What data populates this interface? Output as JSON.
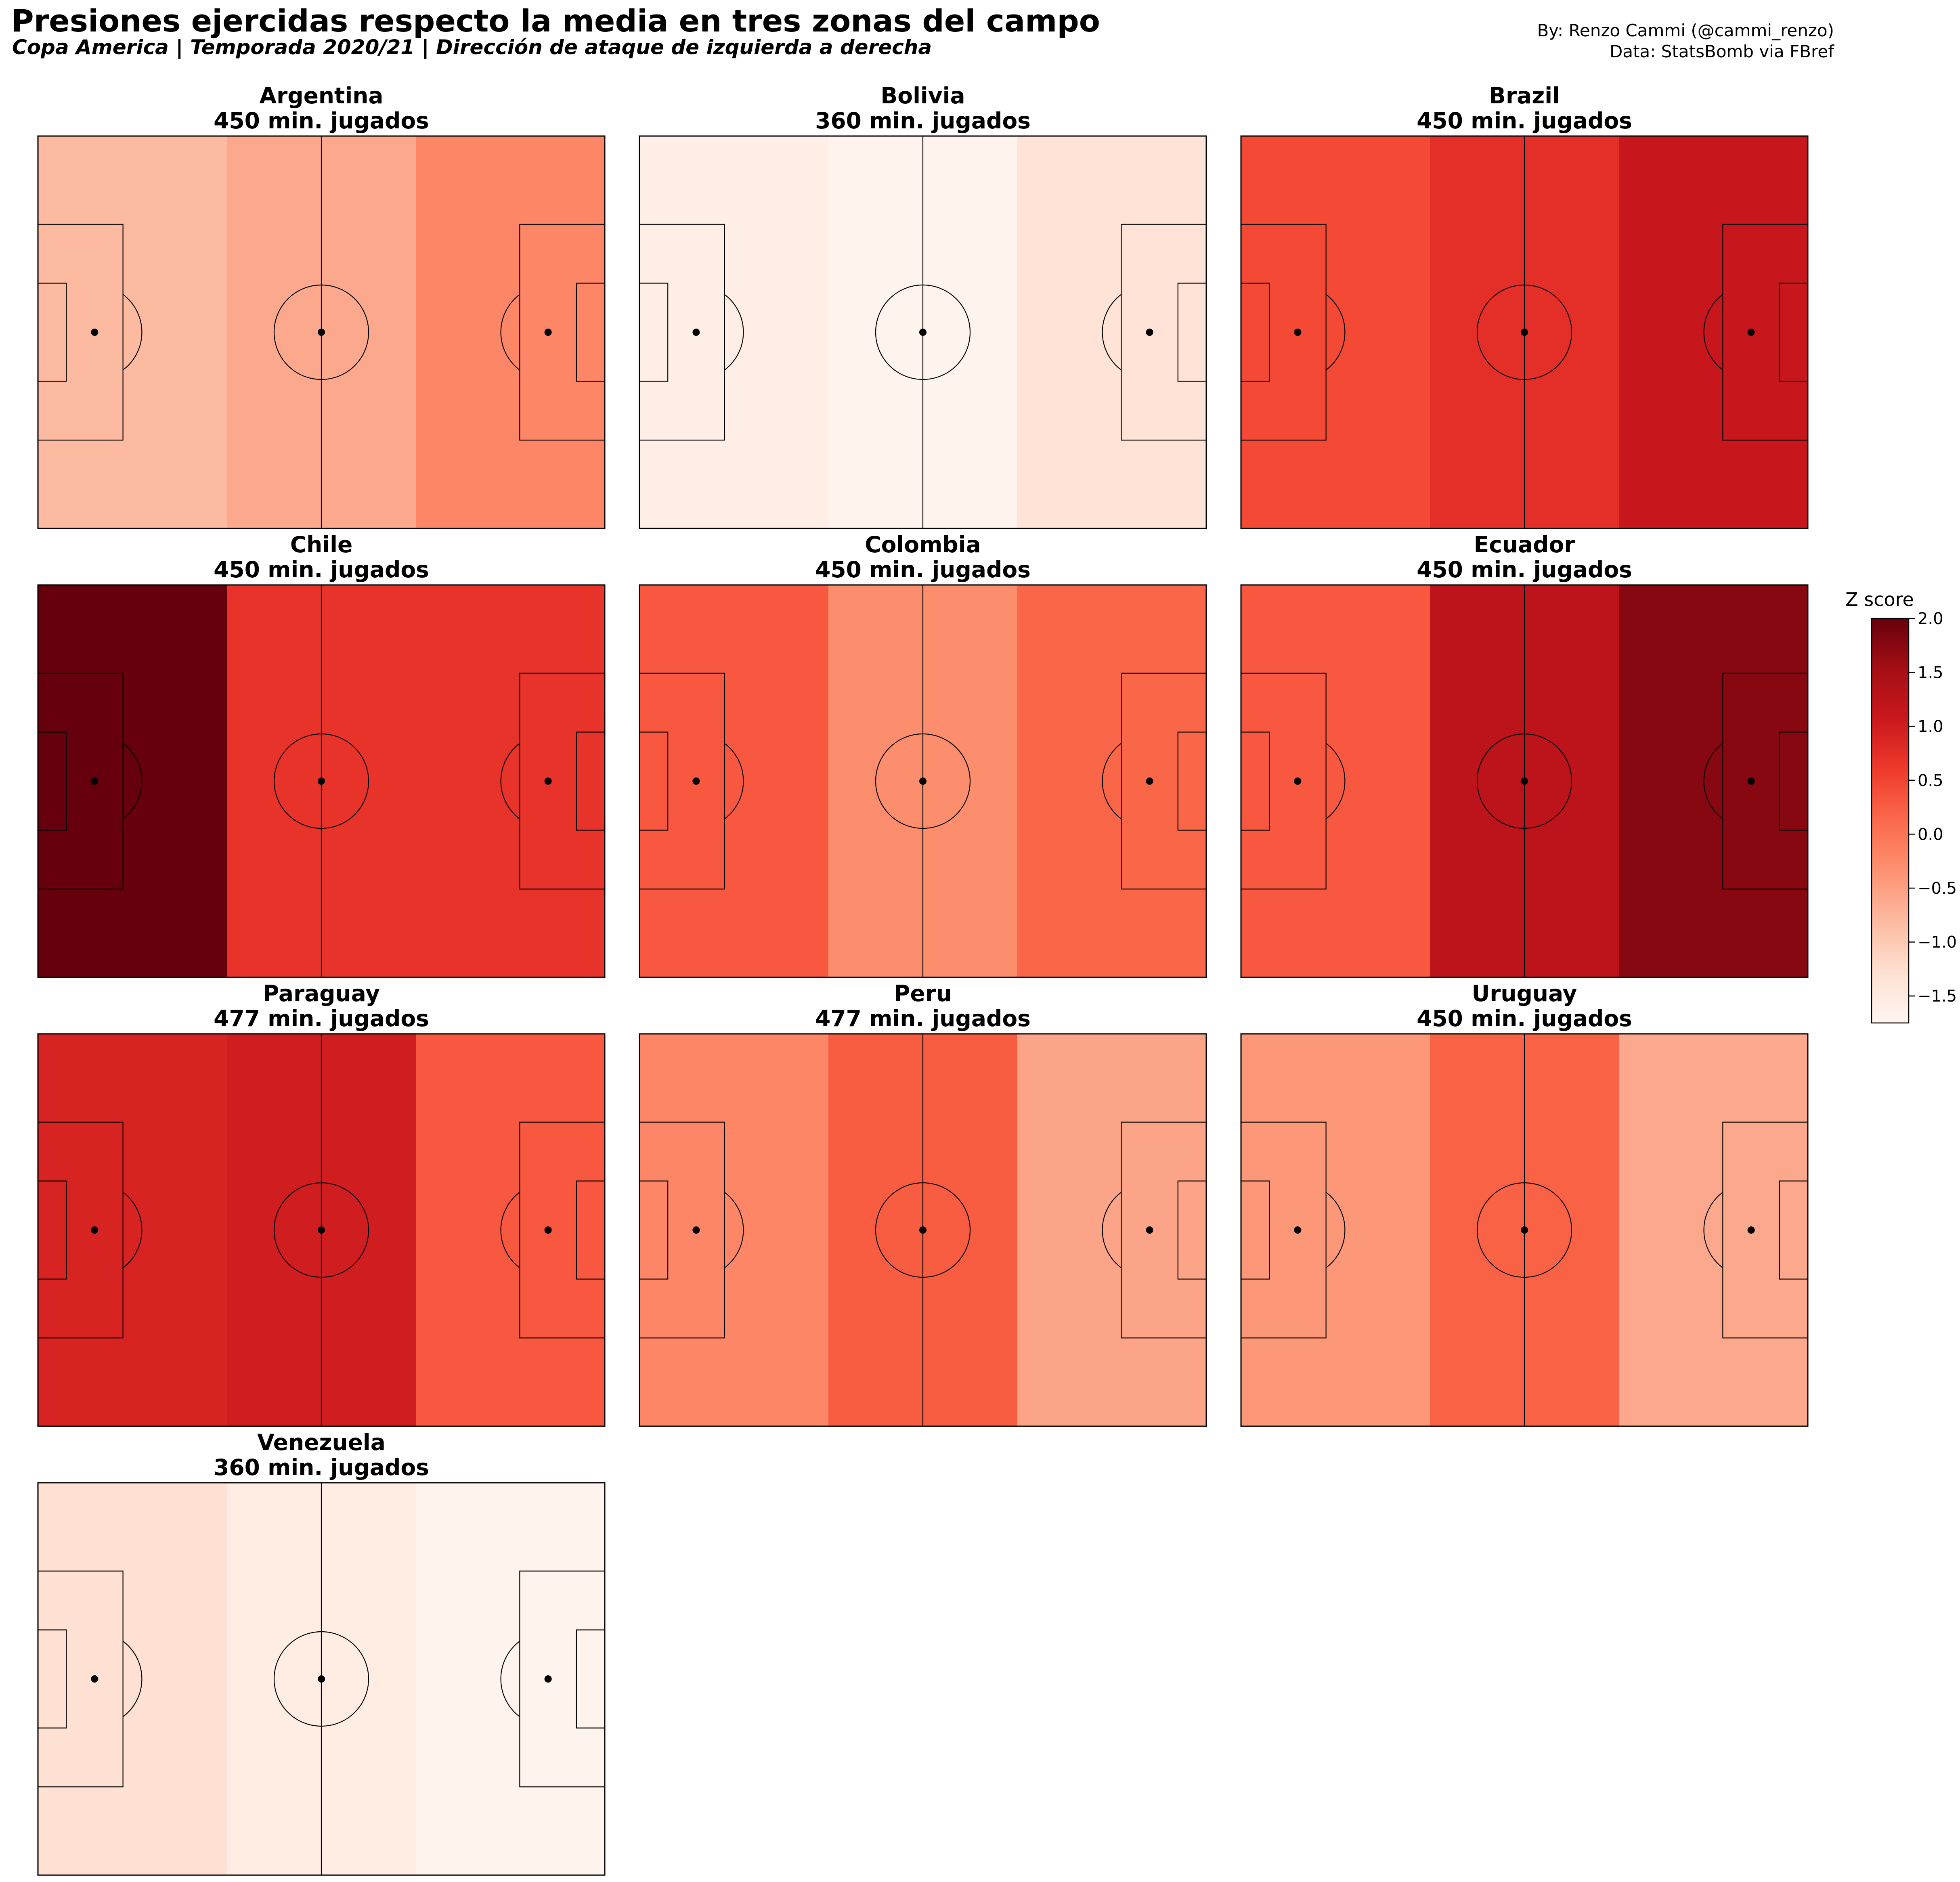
{
  "header": {
    "title": "Presiones ejercidas respecto la media en tres zonas del campo",
    "subtitle": "Copa America | Temporada 2020/21 | Dirección de ataque de izquierda a derecha",
    "credit_author": "By: Renzo Cammi (@cammi_renzo)",
    "credit_data": "Data: StatsBomb via FBref"
  },
  "chart_data": {
    "type": "heatmap",
    "zones": [
      "defensive third",
      "middle third",
      "attacking third"
    ],
    "teams": [
      {
        "name": "Argentina",
        "minutes_label": "450 min. jugados",
        "values": [
          -0.8,
          -0.6,
          -0.2
        ]
      },
      {
        "name": "Bolivia",
        "minutes_label": "360 min. jugados",
        "values": [
          -1.6,
          -1.7,
          -1.35
        ]
      },
      {
        "name": "Brazil",
        "minutes_label": "450 min. jugados",
        "values": [
          0.45,
          0.75,
          1.1
        ]
      },
      {
        "name": "Chile",
        "minutes_label": "450 min. jugados",
        "values": [
          2.0,
          0.7,
          0.7
        ]
      },
      {
        "name": "Colombia",
        "minutes_label": "450 min. jugados",
        "values": [
          0.3,
          -0.3,
          0.15
        ]
      },
      {
        "name": "Ecuador",
        "minutes_label": "450 min. jugados",
        "values": [
          0.3,
          1.25,
          1.75
        ]
      },
      {
        "name": "Paraguay",
        "minutes_label": "477 min. jugados",
        "values": [
          0.9,
          1.0,
          0.3
        ]
      },
      {
        "name": "Peru",
        "minutes_label": "477 min. jugados",
        "values": [
          -0.2,
          0.25,
          -0.55
        ]
      },
      {
        "name": "Uruguay",
        "minutes_label": "450 min. jugados",
        "values": [
          -0.4,
          0.2,
          -0.6
        ]
      },
      {
        "name": "Venezuela",
        "minutes_label": "360 min. jugados",
        "values": [
          -1.3,
          -1.55,
          -1.7
        ]
      }
    ],
    "colorbar": {
      "title": "Z score",
      "range": [
        -1.75,
        2.0
      ],
      "ticks": [
        2.0,
        1.5,
        1.0,
        0.5,
        0.0,
        -0.5,
        -1.0,
        -1.5
      ],
      "tick_labels": [
        "2.0",
        "1.5",
        "1.0",
        "0.5",
        "0.0",
        "−0.5",
        "−1.0",
        "−1.5"
      ],
      "colormap": "Reds",
      "colors": [
        "#fff5f0",
        "#fee0d2",
        "#fcbba1",
        "#fc9272",
        "#fb6a4a",
        "#ef3b2c",
        "#cb181d",
        "#a50f15",
        "#67000d"
      ]
    },
    "grid": false,
    "legend": "right"
  }
}
